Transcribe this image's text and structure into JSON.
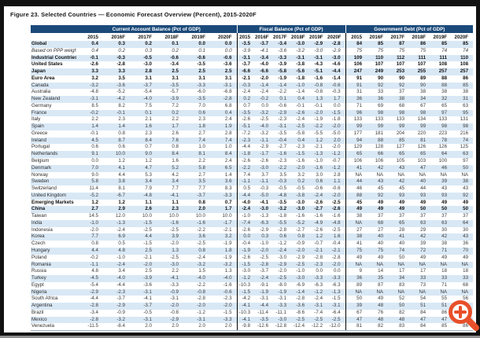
{
  "title": "Figure 23. Selected Countries — Economic Forecast Overview (Percent), 2015-2020F",
  "groups": [
    "Current Account Balance (Pct of GDP)",
    "Fiscal Balance (Pct of GDP)",
    "Government Debt (Pct of GDP)"
  ],
  "years": [
    "2015",
    "2016F",
    "2017F",
    "2018F",
    "2019F",
    "2020F"
  ],
  "accent_colors": {
    "header_navy": "#1b4a7a",
    "row_stripe_blue": "#d9e8f5",
    "zoom_icon_orange": "#e8502a"
  },
  "overlay": {
    "icon": "zoom-plus-icon"
  },
  "chart_data": {
    "type": "table",
    "title": "Figure 23. Selected Countries — Economic Forecast Overview (Percent), 2015-2020F",
    "column_groups": [
      "Current Account Balance (Pct of GDP)",
      "Fiscal Balance (Pct of GDP)",
      "Government Debt (Pct of GDP)"
    ],
    "columns": [
      "2015",
      "2016F",
      "2017F",
      "2018F",
      "2019F",
      "2020F"
    ]
  },
  "rows": [
    {
      "label": "Global",
      "style": "bold",
      "ca": [
        "0.4",
        "0.3",
        "0.2",
        "0.1",
        "0.0",
        "0.0"
      ],
      "fb": [
        "-3.5",
        "-3.7",
        "-3.4",
        "-3.0",
        "-2.9",
        "-2.8"
      ],
      "gd": [
        "84",
        "85",
        "87",
        "86",
        "85",
        "85"
      ]
    },
    {
      "label": "Based on PPP weights",
      "style": "italic",
      "ca": [
        "0.4",
        "0.2",
        "0.3",
        "0.2",
        "0.1",
        "0.0"
      ],
      "fb": [
        "-3.9",
        "-4.1",
        "-3.6",
        "-3.2",
        "-3.0",
        "-2.9"
      ],
      "gd": [
        "75",
        "75",
        "75",
        "75",
        "74",
        "74"
      ]
    },
    {
      "label": "Industrial Countries",
      "style": "bold",
      "ca": [
        "-0.1",
        "-0.3",
        "-0.5",
        "-0.6",
        "-0.6",
        "-0.6"
      ],
      "fb": [
        "-3.1",
        "-3.4",
        "-3.3",
        "-3.1",
        "-3.1",
        "-3.0"
      ],
      "gd": [
        "109",
        "110",
        "112",
        "111",
        "111",
        "110"
      ]
    },
    {
      "label": "United States",
      "style": "bold",
      "ca": [
        "-2.6",
        "-2.8",
        "-3.0",
        "-3.4",
        "-3.5",
        "-3.6"
      ],
      "fb": [
        "-3.7",
        "-4.0",
        "-3.9",
        "-3.8",
        "-4.3",
        "-4.6"
      ],
      "gd": [
        "106",
        "107",
        "107",
        "107",
        "108",
        "108"
      ]
    },
    {
      "label": "Japan",
      "style": "bold",
      "ca": [
        "3.3",
        "3.3",
        "2.8",
        "2.5",
        "2.5",
        "2.5"
      ],
      "fb": [
        "-6.6",
        "-6.6",
        "-5.8",
        "-5.6",
        "-5.1",
        "-4.4"
      ],
      "gd": [
        "247",
        "249",
        "253",
        "255",
        "257",
        "257"
      ]
    },
    {
      "label": "Euro Area",
      "style": "bold",
      "ca": [
        "3.2",
        "3.5",
        "3.1",
        "3.1",
        "3.1",
        "3.1"
      ],
      "fb": [
        "-2.1",
        "-2.0",
        "-1.9",
        "-1.8",
        "-1.6",
        "-1.4"
      ],
      "gd": [
        "91",
        "90",
        "90",
        "89",
        "88",
        "86"
      ]
    },
    {
      "label": "Canada",
      "style": "normal",
      "ca": [
        "-3.2",
        "-3.6",
        "-3.7",
        "-3.5",
        "-3.3",
        "-3.1"
      ],
      "fb": [
        "-0.3",
        "-1.4",
        "-1.4",
        "-1.0",
        "-0.8",
        "-0.6"
      ],
      "gd": [
        "91",
        "92",
        "92",
        "90",
        "88",
        "85"
      ]
    },
    {
      "label": "Australia",
      "style": "normal",
      "ca": [
        "-4.8",
        "-5.2",
        "-5.4",
        "-5.7",
        "-6.0",
        "-6.8"
      ],
      "fb": [
        "-2.4",
        "-2.4",
        "-2.2",
        "-1.4",
        "-0.8",
        "-0.3"
      ],
      "gd": [
        "31",
        "33",
        "37",
        "38",
        "38",
        "38"
      ]
    },
    {
      "label": "New Zealand",
      "style": "normal",
      "ca": [
        "-3.1",
        "-4.2",
        "-4.0",
        "-3.9",
        "-3.5",
        "-2.8"
      ],
      "fb": [
        "0.2",
        "-0.2",
        "0.1",
        "0.4",
        "1.3",
        "1.7"
      ],
      "gd": [
        "36",
        "36",
        "38",
        "34",
        "32",
        "31"
      ]
    },
    {
      "label": "Germany",
      "style": "normal",
      "ca": [
        "8.5",
        "8.2",
        "7.5",
        "7.2",
        "7.0",
        "6.8"
      ],
      "fb": [
        "0.7",
        "0.0",
        "-0.6",
        "-0.1",
        "-0.1",
        "0.0"
      ],
      "gd": [
        "71",
        "69",
        "68",
        "67",
        "65",
        "63"
      ]
    },
    {
      "label": "France",
      "style": "normal",
      "ca": [
        "-0.2",
        "-0.1",
        "0.1",
        "0.2",
        "0.6",
        "0.4"
      ],
      "fb": [
        "-3.5",
        "-3.2",
        "-2.9",
        "-2.6",
        "-2.0",
        "-1.5"
      ],
      "gd": [
        "96",
        "98",
        "98",
        "98",
        "97",
        "95"
      ]
    },
    {
      "label": "Italy",
      "style": "normal",
      "ca": [
        "2.2",
        "2.3",
        "2.1",
        "2.2",
        "2.3",
        "2.4"
      ],
      "fb": [
        "-2.6",
        "-2.5",
        "-2.3",
        "-2.4",
        "-1.9",
        "-1.8"
      ],
      "gd": [
        "133",
        "133",
        "133",
        "134",
        "133",
        "131"
      ]
    },
    {
      "label": "Spain",
      "style": "normal",
      "ca": [
        "1.4",
        "1.4",
        "1.6",
        "1.7",
        "1.8",
        "1.9"
      ],
      "fb": [
        "-5.1",
        "-4.0",
        "-3.1",
        "-2.5",
        "-2.2",
        "-2.0"
      ],
      "gd": [
        "99",
        "99",
        "99",
        "99",
        "98",
        "98"
      ]
    },
    {
      "label": "Greece",
      "style": "normal",
      "ca": [
        "-0.1",
        "0.8",
        "2.3",
        "2.6",
        "2.7",
        "2.8"
      ],
      "fb": [
        "-7.2",
        "-3.2",
        "-3.5",
        "-5.8",
        "-5.5",
        "-5.0"
      ],
      "gd": [
        "177",
        "181",
        "204",
        "220",
        "223",
        "216"
      ]
    },
    {
      "label": "Ireland",
      "style": "normal",
      "ca": [
        "4.5",
        "8.7",
        "8.4",
        "7.6",
        "7.4",
        "7.4"
      ],
      "fb": [
        "-2.3",
        "-1.1",
        "-0.4",
        "0.4",
        "1.2",
        "2.0"
      ],
      "gd": [
        "94",
        "88",
        "85",
        "81",
        "78",
        "74"
      ]
    },
    {
      "label": "Portugal",
      "style": "normal",
      "ca": [
        "0.6",
        "0.6",
        "0.7",
        "0.8",
        "1.0",
        "1.0"
      ],
      "fb": [
        "-4.4",
        "-2.9",
        "-2.7",
        "-2.3",
        "-2.1",
        "-2.0"
      ],
      "gd": [
        "129",
        "128",
        "127",
        "126",
        "126",
        "125"
      ]
    },
    {
      "label": "Netherlands",
      "style": "normal",
      "ca": [
        "9.1",
        "10.0",
        "9.0",
        "8.4",
        "8.1",
        "8.4"
      ],
      "fb": [
        "-1.8",
        "-1.7",
        "-1.6",
        "-1.5",
        "-1.3",
        "-1.2"
      ],
      "gd": [
        "65",
        "66",
        "65",
        "65",
        "64",
        "63"
      ]
    },
    {
      "label": "Belgium",
      "style": "normal",
      "ca": [
        "0.0",
        "1.2",
        "1.2",
        "1.6",
        "2.2",
        "2.4"
      ],
      "fb": [
        "-2.6",
        "-2.6",
        "-2.3",
        "-1.6",
        "-1.0",
        "-0.7"
      ],
      "gd": [
        "106",
        "106",
        "105",
        "103",
        "100",
        "97"
      ]
    },
    {
      "label": "Denmark",
      "style": "normal",
      "ca": [
        "7.0",
        "4.1",
        "4.7",
        "5.2",
        "5.8",
        "6.5"
      ],
      "fb": [
        "-2.2",
        "-3.0",
        "-2.2",
        "-2.0",
        "-1.6",
        "-1.2"
      ],
      "gd": [
        "41",
        "42",
        "43",
        "47",
        "46",
        "50"
      ]
    },
    {
      "label": "Norway",
      "style": "normal",
      "ca": [
        "9.0",
        "4.4",
        "5.3",
        "4.2",
        "2.7",
        "1.4"
      ],
      "fb": [
        "7.4",
        "3.7",
        "3.5",
        "3.2",
        "3.0",
        "2.8"
      ],
      "gd": [
        "NA",
        "NA",
        "NA",
        "NA",
        "NA",
        "NA"
      ]
    },
    {
      "label": "Sweden",
      "style": "normal",
      "ca": [
        "5.8",
        "3.8",
        "3.4",
        "3.4",
        "3.5",
        "3.6"
      ],
      "fb": [
        "-1.1",
        "-1.1",
        "-0.3",
        "0.2",
        "0.6",
        "1.1"
      ],
      "gd": [
        "44",
        "43",
        "42",
        "40",
        "39",
        "38"
      ]
    },
    {
      "label": "Switzerland",
      "style": "normal",
      "ca": [
        "11.4",
        "8.1",
        "7.9",
        "7.7",
        "7.7",
        "8.3"
      ],
      "fb": [
        "0.5",
        "-0.3",
        "-0.5",
        "-0.5",
        "-0.6",
        "-0.6"
      ],
      "gd": [
        "46",
        "45",
        "45",
        "44",
        "43",
        "43"
      ]
    },
    {
      "label": "United Kingdom",
      "style": "normal",
      "ca": [
        "-5.2",
        "-6.7",
        "-4.8",
        "-4.1",
        "-3.7",
        "-3.3"
      ],
      "fb": [
        "-4.4",
        "-5.0",
        "-4.8",
        "-3.8",
        "-2.4",
        "-2.0"
      ],
      "gd": [
        "88",
        "92",
        "93",
        "93",
        "93",
        "92"
      ]
    },
    {
      "label": "Emerging Markets",
      "style": "bold",
      "ca": [
        "1.2",
        "1.2",
        "1.1",
        "1.1",
        "0.8",
        "0.7"
      ],
      "fb": [
        "-4.0",
        "-4.1",
        "-3.5",
        "-3.0",
        "-2.6",
        "-2.5"
      ],
      "gd": [
        "45",
        "49",
        "49",
        "49",
        "49",
        "49"
      ]
    },
    {
      "label": "China",
      "style": "bold",
      "ca": [
        "2.7",
        "2.9",
        "2.6",
        "2.3",
        "2.0",
        "1.7"
      ],
      "fb": [
        "-2.4",
        "-3.0",
        "-3.2",
        "-3.0",
        "-2.7",
        "-2.6"
      ],
      "gd": [
        "49",
        "49",
        "49",
        "50",
        "50",
        "50"
      ]
    },
    {
      "label": "Taiwan",
      "style": "normal",
      "ca": [
        "14.5",
        "12.0",
        "10.0",
        "10.0",
        "10.0",
        "10.0"
      ],
      "fb": [
        "-1.0",
        "-1.3",
        "-1.8",
        "-1.6",
        "-1.6",
        "-1.6"
      ],
      "gd": [
        "38",
        "37",
        "37",
        "37",
        "37",
        "37"
      ]
    },
    {
      "label": "India",
      "style": "normal",
      "ca": [
        "-1.0",
        "-1.3",
        "-1.5",
        "-1.6",
        "-1.6",
        "-1.7"
      ],
      "fb": [
        "-7.4",
        "-6.3",
        "-5.5",
        "-5.2",
        "-4.9",
        "-4.8"
      ],
      "gd": [
        "NA",
        "68",
        "65",
        "63",
        "63",
        "64"
      ]
    },
    {
      "label": "Indonesia",
      "style": "normal",
      "ca": [
        "-2.0",
        "-2.4",
        "-2.5",
        "-2.5",
        "-2.2",
        "-2.1"
      ],
      "fb": [
        "-2.6",
        "-2.9",
        "-2.8",
        "-2.7",
        "-2.6",
        "-2.5"
      ],
      "gd": [
        "27",
        "27",
        "28",
        "29",
        "30",
        "30"
      ]
    },
    {
      "label": "Korea",
      "style": "normal",
      "ca": [
        "7.7",
        "6.9",
        "4.4",
        "3.9",
        "3.6",
        "3.2"
      ],
      "fb": [
        "0.0",
        "0.3",
        "0.6",
        "0.8",
        "1.2",
        "1.6"
      ],
      "gd": [
        "38",
        "40",
        "41",
        "42",
        "42",
        "43"
      ]
    },
    {
      "label": "Czech",
      "style": "normal",
      "ca": [
        "0.8",
        "0.5",
        "-1.5",
        "-2.0",
        "-2.5",
        "-1.9"
      ],
      "fb": [
        "-0.4",
        "-1.0",
        "-1.2",
        "-0.9",
        "-0.7",
        "-0.4"
      ],
      "gd": [
        "41",
        "40",
        "40",
        "39",
        "38",
        "36"
      ]
    },
    {
      "label": "Hungary",
      "style": "normal",
      "ca": [
        "4.4",
        "4.8",
        "2.5",
        "1.3",
        "0.8",
        "1.8"
      ],
      "fb": [
        "-1.9",
        "-2.0",
        "-2.4",
        "-2.0",
        "-2.1",
        "-2.1"
      ],
      "gd": [
        "75",
        "75",
        "74",
        "72",
        "71",
        "70"
      ]
    },
    {
      "label": "Poland",
      "style": "normal",
      "ca": [
        "-0.2",
        "-1.0",
        "-2.1",
        "-2.5",
        "-2.4",
        "-1.9"
      ],
      "fb": [
        "-2.6",
        "-2.5",
        "-3.0",
        "-2.9",
        "-2.8",
        "-2.8"
      ],
      "gd": [
        "49",
        "49",
        "50",
        "49",
        "49",
        "49"
      ]
    },
    {
      "label": "Romania",
      "style": "normal",
      "ca": [
        "-1.1",
        "-2.4",
        "-2.0",
        "-3.0",
        "-3.2",
        "-3.2"
      ],
      "fb": [
        "-1.5",
        "-2.8",
        "-2.9",
        "-2.5",
        "-2.3",
        "-2.0"
      ],
      "gd": [
        "NA",
        "NA",
        "NA",
        "NA",
        "NA",
        "NA"
      ]
    },
    {
      "label": "Russia",
      "style": "normal",
      "ca": [
        "4.8",
        "3.4",
        "2.5",
        "2.2",
        "1.5",
        "1.3"
      ],
      "fb": [
        "-3.0",
        "-3.7",
        "-2.0",
        "-1.0",
        "0.0",
        "0.0"
      ],
      "gd": [
        "9",
        "14",
        "17",
        "17",
        "18",
        "18"
      ]
    },
    {
      "label": "Turkey",
      "style": "normal",
      "ca": [
        "-4.5",
        "-4.0",
        "-3.9",
        "-4.1",
        "-4.0",
        "-4.0"
      ],
      "fb": [
        "-1.2",
        "-2.4",
        "-2.5",
        "-3.0",
        "-3.3",
        "-3.3"
      ],
      "gd": [
        "36",
        "35",
        "34",
        "33",
        "33",
        "33"
      ]
    },
    {
      "label": "Egypt",
      "style": "normal",
      "ca": [
        "-5.4",
        "-4.4",
        "-3.6",
        "-3.3",
        "-2.2",
        "-1.6"
      ],
      "fb": [
        "-10.3",
        "-9.1",
        "-8.0",
        "-6.9",
        "-6.3",
        "-6.3"
      ],
      "gd": [
        "89",
        "87",
        "83",
        "73",
        "71",
        "68"
      ]
    },
    {
      "label": "Nigeria",
      "style": "normal",
      "ca": [
        "-2.9",
        "-2.3",
        "-3.1",
        "-0.9",
        "-0.8",
        "-0.6"
      ],
      "fb": [
        "-1.5",
        "-1.9",
        "-1.9",
        "-1.4",
        "-1.2",
        "-1.3"
      ],
      "gd": [
        "NA",
        "NA",
        "NA",
        "NA",
        "NA",
        "NA"
      ]
    },
    {
      "label": "South Africa",
      "style": "normal",
      "ca": [
        "-4.4",
        "-3.7",
        "-4.1",
        "-3.1",
        "-2.8",
        "-2.3"
      ],
      "fb": [
        "-4.2",
        "-3.1",
        "-3.1",
        "-2.8",
        "-2.4",
        "-1.5"
      ],
      "gd": [
        "50",
        "49",
        "52",
        "54",
        "55",
        "56"
      ]
    },
    {
      "label": "Argentina",
      "style": "normal",
      "ca": [
        "-2.8",
        "-2.9",
        "-3.7",
        "-2.0",
        "-2.0",
        "-2.0"
      ],
      "fb": [
        "-4.1",
        "-4.4",
        "-3.3",
        "-3.6",
        "-3.1",
        "-3.1"
      ],
      "gd": [
        "39",
        "48",
        "50",
        "51",
        "51",
        "51"
      ]
    },
    {
      "label": "Brazil",
      "style": "normal",
      "ca": [
        "-3.4",
        "-0.9",
        "-0.5",
        "-0.8",
        "-1.2",
        "-1.5"
      ],
      "fb": [
        "-10.3",
        "-11.4",
        "-11.1",
        "-8.6",
        "-7.4",
        "-6.4"
      ],
      "gd": [
        "67",
        "76",
        "82",
        "84",
        "86",
        "88"
      ]
    },
    {
      "label": "Mexico",
      "style": "normal",
      "ca": [
        "-2.8",
        "-3.2",
        "-3.1",
        "-2.9",
        "-3.1",
        "-3.3"
      ],
      "fb": [
        "-4.1",
        "-3.5",
        "-3.0",
        "-2.5",
        "-2.5",
        "-2.5"
      ],
      "gd": [
        "47",
        "48",
        "48",
        "47",
        "47",
        "47"
      ]
    },
    {
      "label": "Venezuela",
      "style": "normal",
      "ca": [
        "-11.5",
        "-8.4",
        "2.0",
        "2.0",
        "2.0",
        "2.0"
      ],
      "fb": [
        "-9.8",
        "-12.6",
        "-12.8",
        "-12.4",
        "-12.2",
        "-12.0"
      ],
      "gd": [
        "81",
        "82",
        "83",
        "84",
        "85",
        "86"
      ]
    }
  ]
}
